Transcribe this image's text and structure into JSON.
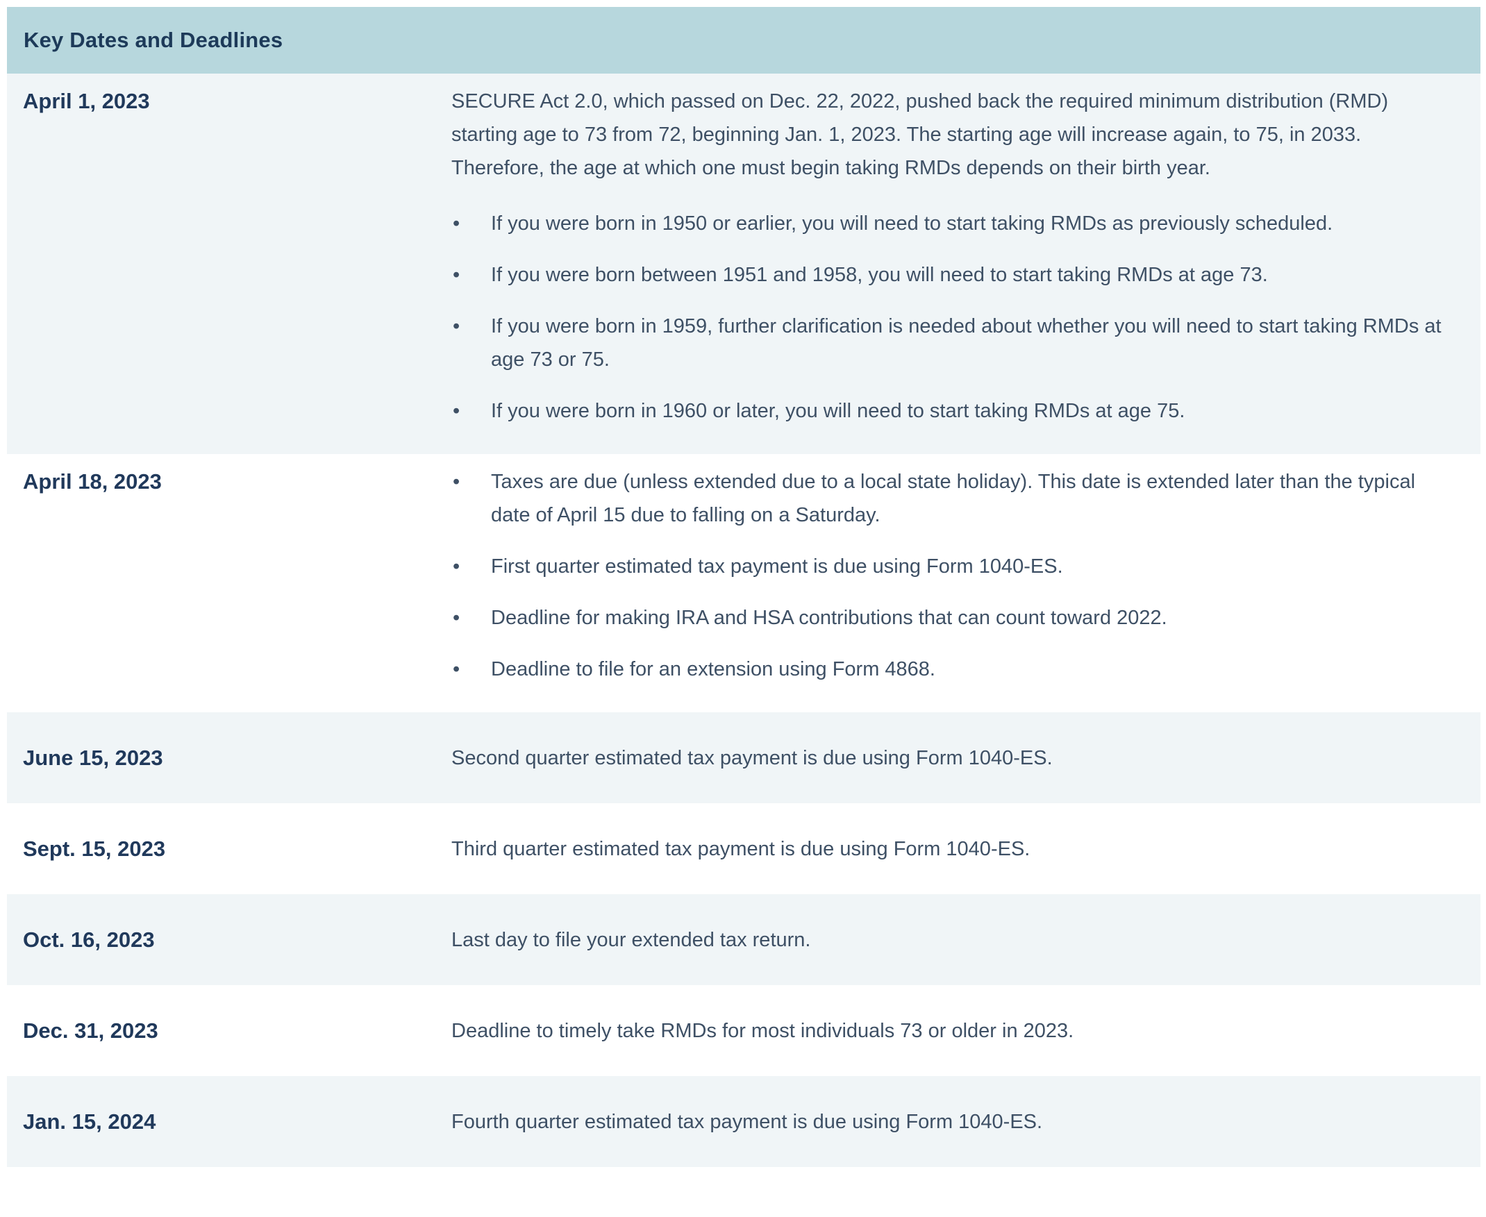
{
  "table": {
    "title": "Key Dates and Deadlines",
    "icons": {
      "bullet_glyph": "•"
    },
    "colors": {
      "header_bg": "#b7d7dd",
      "shaded_row_bg": "#f0f5f7",
      "white_row_bg": "#ffffff",
      "heading_text": "#1d3a59",
      "date_text": "#20395b",
      "body_text": "#3e5065"
    },
    "rows": [
      {
        "date": "April 1, 2023",
        "paragraph": "SECURE Act 2.0, which passed on Dec. 22, 2022, pushed back the required minimum distribution (RMD) starting age to 73 from 72, beginning Jan. 1, 2023. The starting age will increase again, to 75, in 2033. Therefore, the age at which one must begin taking RMDs depends on their birth year.",
        "bullets": [
          "If you were born in 1950 or earlier, you will need to start taking RMDs as previously scheduled.",
          "If you were born between 1951 and 1958, you will need to start taking RMDs at age 73.",
          "If you were born in 1959, further clarification is needed about whether you will need to start taking RMDs at age 73 or 75.",
          "If you were born in 1960 or later, you will need to start taking RMDs at age 75."
        ]
      },
      {
        "date": "April 18, 2023",
        "paragraph": "",
        "bullets": [
          "Taxes are due (unless extended due to a local state holiday). This date is extended later than the typical date of April 15 due to falling on a Saturday.",
          "First quarter estimated tax payment is due using Form 1040-ES.",
          "Deadline for making IRA and HSA contributions that can count toward 2022.",
          "Deadline to file for an extension using Form 4868."
        ]
      },
      {
        "date": "June 15, 2023",
        "paragraph": "Second quarter estimated tax payment is due using Form 1040-ES.",
        "bullets": []
      },
      {
        "date": "Sept. 15, 2023",
        "paragraph": "Third quarter estimated tax payment is due using Form 1040-ES.",
        "bullets": []
      },
      {
        "date": "Oct. 16, 2023",
        "paragraph": "Last day to file your extended tax return.",
        "bullets": []
      },
      {
        "date": "Dec. 31, 2023",
        "paragraph": "Deadline to timely take RMDs for most individuals 73 or older in 2023.",
        "bullets": []
      },
      {
        "date": "Jan. 15, 2024",
        "paragraph": "Fourth quarter estimated tax payment is due using Form 1040-ES.",
        "bullets": []
      }
    ]
  }
}
